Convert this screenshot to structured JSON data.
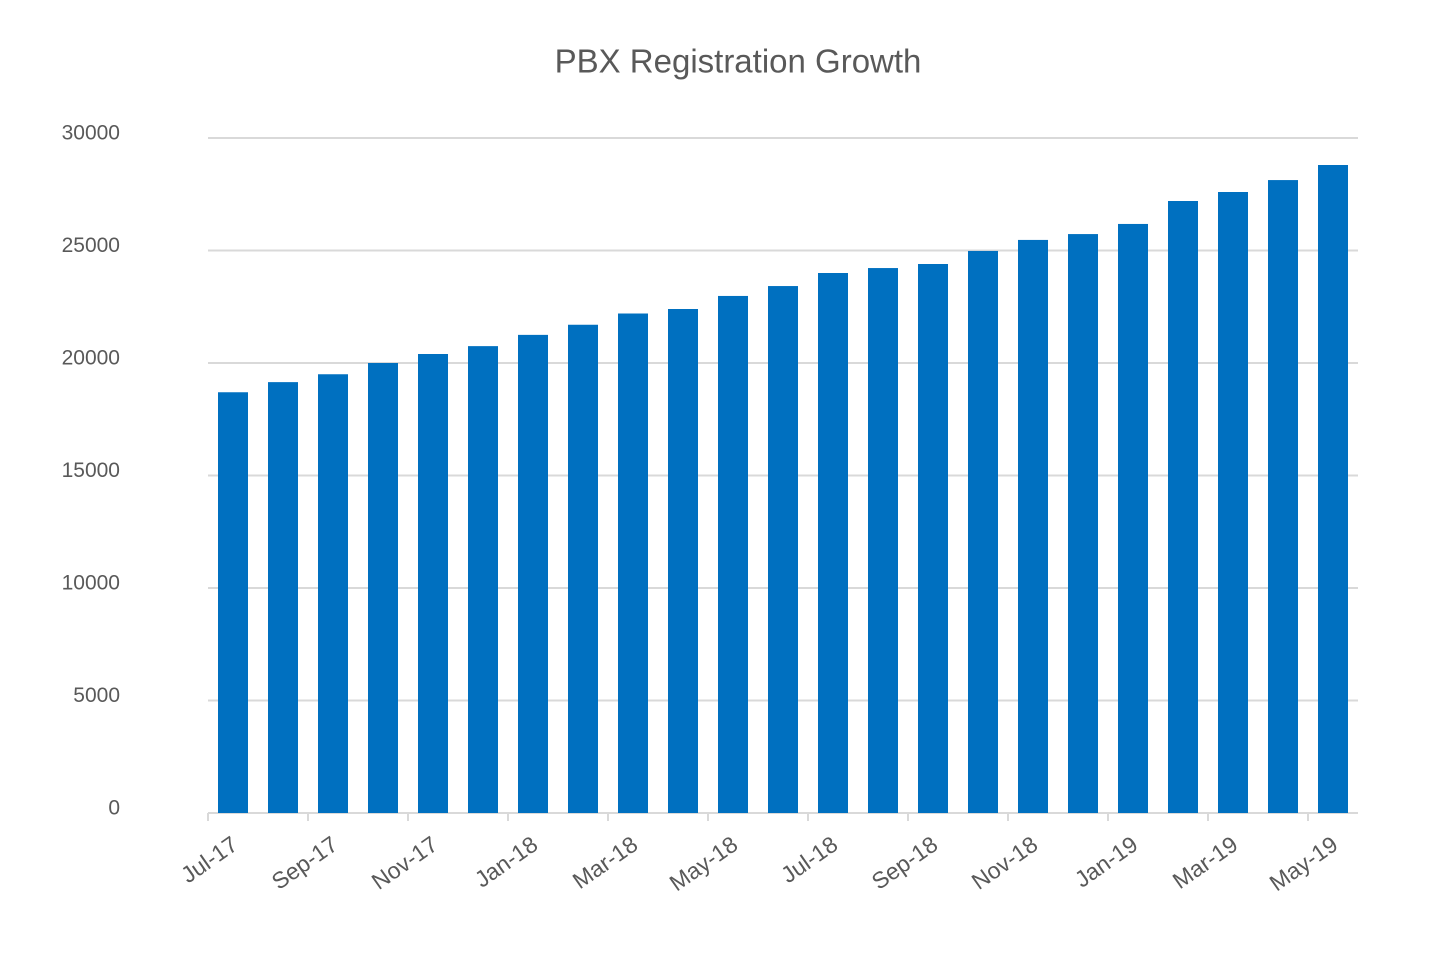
{
  "chart_data": {
    "type": "bar",
    "title": "PBX Registration Growth",
    "categories": [
      "Jul-17",
      null,
      "Sep-17",
      null,
      "Nov-17",
      null,
      "Jan-18",
      null,
      "Mar-18",
      null,
      "May-18",
      null,
      "Jul-18",
      null,
      "Sep-18",
      null,
      "Nov-18",
      null,
      "Jan-19",
      null,
      "Mar-19",
      null,
      "May-19"
    ],
    "values": [
      18700,
      19150,
      19500,
      20000,
      20400,
      20750,
      21250,
      21700,
      22200,
      22400,
      22980,
      23420,
      24000,
      24220,
      24400,
      24980,
      25470,
      25730,
      26180,
      27200,
      27600,
      28130,
      28800
    ],
    "color": "#0070c0",
    "ylim": [
      0,
      30000
    ],
    "yticks": [
      0,
      5000,
      10000,
      15000,
      20000,
      25000,
      30000
    ],
    "grid": true
  }
}
